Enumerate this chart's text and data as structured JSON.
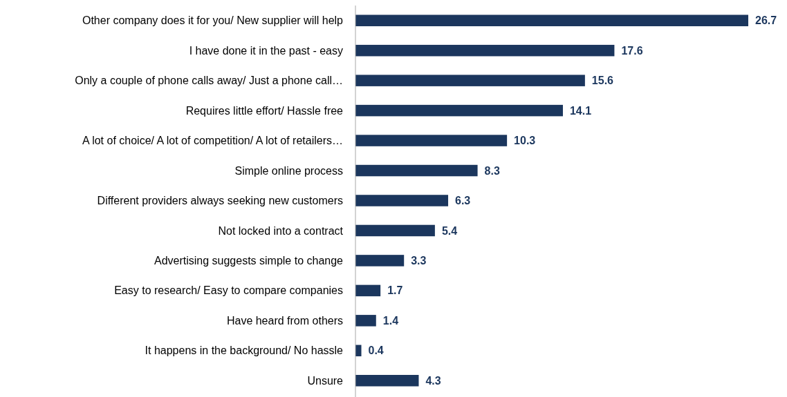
{
  "chart_data": {
    "type": "bar",
    "orientation": "horizontal",
    "categories": [
      "Other company does it for you/ New supplier will help",
      "I have done it in the past - easy",
      "Only a couple of phone calls away/ Just a phone call…",
      "Requires little effort/ Hassle free",
      "A lot of choice/ A lot of competition/ A lot of retailers…",
      "Simple online process",
      "Different providers always seeking new customers",
      "Not locked into a contract",
      "Advertising suggests simple to change",
      "Easy to research/ Easy to compare companies",
      "Have heard from others",
      "It happens in the background/ No hassle",
      "Unsure"
    ],
    "values": [
      26.7,
      17.6,
      15.6,
      14.1,
      10.3,
      8.3,
      6.3,
      5.4,
      3.3,
      1.7,
      1.4,
      0.4,
      4.3
    ],
    "color": "#1b365d",
    "data_labels": true
  }
}
